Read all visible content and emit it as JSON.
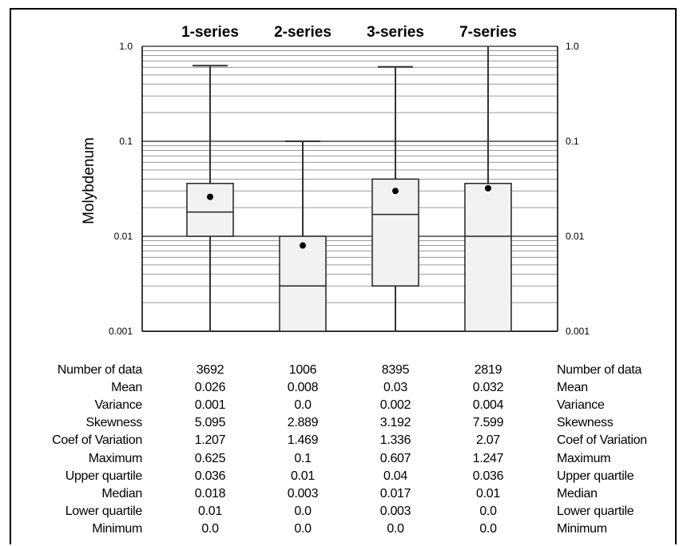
{
  "chart_data": {
    "type": "boxplot",
    "ylabel": "Molybdenum",
    "y_scale": "log",
    "ylim": [
      0.001,
      1.0
    ],
    "y_ticks": [
      "0.001",
      "0.01",
      "0.1",
      "1.0"
    ],
    "categories": [
      "1-series",
      "2-series",
      "3-series",
      "7-series"
    ],
    "boxes": [
      {
        "name": "1-series",
        "min": 0.0,
        "q1": 0.01,
        "median": 0.018,
        "q3": 0.036,
        "max": 0.625,
        "mean": 0.026
      },
      {
        "name": "2-series",
        "min": 0.0,
        "q1": 0.0,
        "median": 0.003,
        "q3": 0.01,
        "max": 0.1,
        "mean": 0.008
      },
      {
        "name": "3-series",
        "min": 0.0,
        "q1": 0.003,
        "median": 0.017,
        "q3": 0.04,
        "max": 0.607,
        "mean": 0.03
      },
      {
        "name": "7-series",
        "min": 0.0,
        "q1": 0.0,
        "median": 0.01,
        "q3": 0.036,
        "max": 1.247,
        "mean": 0.032
      }
    ],
    "grid": true
  },
  "stats_table": {
    "rows": [
      {
        "label": "Number of data",
        "values": [
          "3692",
          "1006",
          "8395",
          "2819"
        ]
      },
      {
        "label": "Mean",
        "values": [
          "0.026",
          "0.008",
          "0.03",
          "0.032"
        ]
      },
      {
        "label": "Variance",
        "values": [
          "0.001",
          "0.0",
          "0.002",
          "0.004"
        ]
      },
      {
        "label": "Skewness",
        "values": [
          "5.095",
          "2.889",
          "3.192",
          "7.599"
        ]
      },
      {
        "label": "Coef of Variation",
        "values": [
          "1.207",
          "1.469",
          "1.336",
          "2.07"
        ]
      },
      {
        "label": "Maximum",
        "values": [
          "0.625",
          "0.1",
          "0.607",
          "1.247"
        ]
      },
      {
        "label": "Upper quartile",
        "values": [
          "0.036",
          "0.01",
          "0.04",
          "0.036"
        ]
      },
      {
        "label": "Median",
        "values": [
          "0.018",
          "0.003",
          "0.017",
          "0.01"
        ]
      },
      {
        "label": "Lower quartile",
        "values": [
          "0.01",
          "0.0",
          "0.003",
          "0.0"
        ]
      },
      {
        "label": "Minimum",
        "values": [
          "0.0",
          "0.0",
          "0.0",
          "0.0"
        ]
      }
    ]
  }
}
